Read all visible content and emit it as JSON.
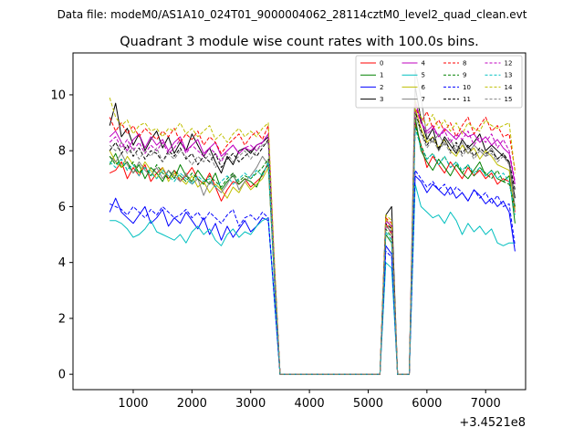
{
  "chart_data": {
    "type": "line",
    "suptitle": "Data file: modeM0/AS1A10_024T01_9000004062_28114cztM0_level2_quad_clean.evt",
    "title": "Quadrant 3 module wise count rates with 100.0s bins.",
    "xlabel": "",
    "ylabel": "",
    "x_offset_label": "+3.4521e8",
    "xlim": [
      -25,
      7680
    ],
    "ylim": [
      -0.55,
      11.5
    ],
    "xticks": [
      1000,
      2000,
      3000,
      4000,
      5000,
      6000,
      7000
    ],
    "xtick_labels": [
      "1000",
      "2000",
      "3000",
      "4000",
      "5000",
      "6000",
      "7000"
    ],
    "yticks": [
      0,
      2,
      4,
      6,
      8,
      10
    ],
    "ytick_labels": [
      "0",
      "2",
      "4",
      "6",
      "8",
      "10"
    ],
    "legend_location": "top-right",
    "legend_columns": 4,
    "x": [
      600,
      700,
      800,
      900,
      1000,
      1100,
      1200,
      1300,
      1400,
      1500,
      1600,
      1700,
      1800,
      1900,
      2000,
      2100,
      2200,
      2300,
      2400,
      2500,
      2600,
      2700,
      2800,
      2900,
      3000,
      3100,
      3200,
      3300,
      3400,
      3500,
      3600,
      3700,
      3800,
      3900,
      4000,
      4100,
      4200,
      4300,
      4400,
      4500,
      4600,
      4700,
      4800,
      4900,
      5000,
      5100,
      5200,
      5300,
      5400,
      5500,
      5600,
      5700,
      5800,
      5900,
      6000,
      6100,
      6200,
      6300,
      6400,
      6500,
      6600,
      6700,
      6800,
      6900,
      7000,
      7100,
      7200,
      7300,
      7400,
      7500
    ],
    "series": [
      {
        "name": "0",
        "color": "#ff0000",
        "dash": false,
        "values": [
          7.2,
          7.3,
          7.6,
          7.0,
          7.4,
          7.1,
          7.5,
          6.9,
          7.2,
          7.4,
          7.0,
          7.3,
          6.9,
          7.1,
          7.4,
          7.0,
          6.8,
          7.2,
          6.7,
          6.2,
          6.6,
          6.9,
          6.8,
          7.0,
          6.7,
          6.9,
          7.1,
          7.6,
          3.5,
          0.0,
          0,
          0,
          0,
          0,
          0,
          0,
          0,
          0,
          0,
          0,
          0,
          0,
          0,
          0,
          0,
          0,
          0.0,
          5.4,
          5.0,
          0.0,
          0,
          0.0,
          9.0,
          8.2,
          7.4,
          7.8,
          7.5,
          7.2,
          7.6,
          7.3,
          7.0,
          7.4,
          7.1,
          7.3,
          7.0,
          7.2,
          6.8,
          7.0,
          6.9,
          5.8
        ]
      },
      {
        "name": "1",
        "color": "#008000",
        "dash": false,
        "values": [
          7.5,
          7.9,
          7.4,
          7.6,
          7.2,
          7.5,
          7.0,
          7.4,
          7.2,
          6.9,
          7.3,
          7.0,
          7.5,
          7.1,
          6.9,
          7.3,
          7.0,
          6.8,
          7.2,
          6.6,
          6.9,
          7.1,
          6.8,
          7.0,
          6.9,
          6.7,
          7.2,
          7.5,
          3.6,
          0.0,
          0,
          0,
          0,
          0,
          0,
          0,
          0,
          0,
          0,
          0,
          0,
          0,
          0,
          0,
          0,
          0,
          0.0,
          5.0,
          4.7,
          0.0,
          0,
          0.0,
          9.2,
          8.0,
          7.6,
          7.3,
          7.7,
          7.4,
          7.1,
          7.5,
          7.2,
          7.0,
          7.3,
          7.6,
          7.1,
          7.3,
          7.0,
          6.9,
          7.1,
          5.4
        ]
      },
      {
        "name": "2",
        "color": "#0000ff",
        "dash": false,
        "values": [
          5.8,
          6.3,
          5.8,
          5.6,
          5.4,
          5.7,
          6.0,
          5.4,
          5.6,
          5.9,
          5.3,
          5.6,
          5.4,
          5.8,
          5.5,
          5.2,
          5.6,
          5.0,
          5.4,
          4.8,
          5.3,
          4.9,
          5.2,
          5.5,
          5.1,
          5.3,
          5.6,
          5.5,
          2.8,
          0.0,
          0,
          0,
          0,
          0,
          0,
          0,
          0,
          0,
          0,
          0,
          0,
          0,
          0,
          0,
          0,
          0,
          0.0,
          4.6,
          4.3,
          0.0,
          0,
          0.0,
          7.1,
          6.9,
          6.5,
          6.8,
          6.6,
          6.4,
          6.7,
          6.3,
          6.5,
          6.2,
          6.6,
          6.4,
          6.1,
          6.3,
          6.0,
          6.2,
          5.8,
          4.4
        ]
      },
      {
        "name": "3",
        "color": "#000000",
        "dash": false,
        "values": [
          8.9,
          9.7,
          8.5,
          8.8,
          8.2,
          8.6,
          8.0,
          8.4,
          8.7,
          8.1,
          8.5,
          7.9,
          8.3,
          8.0,
          8.6,
          8.2,
          7.8,
          8.1,
          7.6,
          7.2,
          7.8,
          7.5,
          8.0,
          8.1,
          7.9,
          8.2,
          8.3,
          8.5,
          4.0,
          0.0,
          0,
          0,
          0,
          0,
          0,
          0,
          0,
          0,
          0,
          0,
          0,
          0,
          0,
          0,
          0,
          0,
          0.0,
          5.7,
          6.0,
          0.0,
          0,
          0.0,
          10.3,
          9.1,
          8.4,
          8.8,
          8.0,
          8.5,
          8.2,
          7.9,
          8.4,
          8.1,
          8.3,
          8.6,
          8.0,
          8.2,
          8.0,
          7.8,
          7.6,
          6.3
        ]
      },
      {
        "name": "4",
        "color": "#bf00bf",
        "dash": false,
        "values": [
          8.5,
          8.7,
          8.3,
          8.0,
          8.4,
          8.6,
          8.1,
          8.5,
          8.2,
          8.4,
          8.0,
          8.3,
          8.5,
          8.0,
          8.2,
          8.4,
          7.9,
          8.1,
          8.3,
          7.8,
          8.0,
          8.2,
          7.9,
          8.1,
          8.0,
          8.2,
          8.3,
          8.6,
          3.9,
          0.0,
          0,
          0,
          0,
          0,
          0,
          0,
          0,
          0,
          0,
          0,
          0,
          0,
          0,
          0,
          0,
          0,
          0.0,
          5.5,
          5.3,
          0.0,
          0,
          0.0,
          9.8,
          9.0,
          8.7,
          8.9,
          8.5,
          8.8,
          8.6,
          8.4,
          8.7,
          8.5,
          8.6,
          8.3,
          8.5,
          8.2,
          8.4,
          8.1,
          7.9,
          6.8
        ]
      },
      {
        "name": "5",
        "color": "#00bfbf",
        "dash": false,
        "values": [
          5.5,
          5.5,
          5.4,
          5.2,
          4.9,
          5.0,
          5.2,
          5.5,
          5.1,
          5.0,
          4.9,
          4.8,
          5.0,
          4.7,
          5.1,
          5.3,
          5.0,
          5.2,
          4.8,
          4.6,
          5.0,
          5.2,
          4.9,
          5.1,
          5.0,
          5.3,
          5.5,
          5.6,
          2.7,
          0.0,
          0,
          0,
          0,
          0,
          0,
          0,
          0,
          0,
          0,
          0,
          0,
          0,
          0,
          0,
          0,
          0,
          0.0,
          4.0,
          3.8,
          0.0,
          0,
          0.0,
          6.8,
          6.0,
          5.8,
          5.6,
          5.7,
          5.4,
          5.8,
          5.5,
          5.0,
          5.4,
          5.1,
          5.3,
          5.0,
          5.2,
          4.7,
          4.6,
          4.7,
          4.7
        ]
      },
      {
        "name": "6",
        "color": "#bfbf00",
        "dash": false,
        "values": [
          8.0,
          7.6,
          7.4,
          7.8,
          7.5,
          7.2,
          7.6,
          7.3,
          7.0,
          7.4,
          6.9,
          7.2,
          7.0,
          6.8,
          7.1,
          6.7,
          6.9,
          6.5,
          6.8,
          6.6,
          6.3,
          6.7,
          6.5,
          6.9,
          6.6,
          6.8,
          7.0,
          7.4,
          3.6,
          0.0,
          0,
          0,
          0,
          0,
          0,
          0,
          0,
          0,
          0,
          0,
          0,
          0,
          0,
          0,
          0,
          0,
          0.0,
          5.6,
          5.2,
          0.0,
          0,
          0.0,
          9.5,
          8.8,
          8.3,
          8.5,
          8.1,
          8.4,
          8.0,
          7.8,
          8.2,
          7.9,
          8.1,
          7.7,
          8.0,
          7.8,
          7.5,
          7.4,
          7.3,
          5.9
        ]
      },
      {
        "name": "7",
        "color": "#808080",
        "dash": false,
        "values": [
          7.8,
          7.6,
          7.9,
          7.5,
          7.2,
          7.6,
          7.3,
          7.1,
          7.4,
          7.0,
          7.3,
          7.1,
          6.9,
          7.2,
          6.8,
          7.0,
          6.4,
          6.9,
          6.7,
          6.5,
          6.8,
          7.2,
          6.6,
          6.9,
          7.1,
          7.4,
          7.8,
          7.5,
          3.5,
          0.0,
          0,
          0,
          0,
          0,
          0,
          0,
          0,
          0,
          0,
          0,
          0,
          0,
          0,
          0,
          0,
          0,
          0.0,
          5.3,
          5.1,
          0.0,
          0,
          0.0,
          10.9,
          9.9,
          8.5,
          8.3,
          8.6,
          8.2,
          8.4,
          8.0,
          8.3,
          7.9,
          8.2,
          8.0,
          7.8,
          8.1,
          7.7,
          7.9,
          7.5,
          6.0
        ]
      },
      {
        "name": "8",
        "color": "#ff0000",
        "dash": true,
        "values": [
          9.2,
          8.7,
          9.0,
          8.6,
          8.9,
          8.5,
          8.8,
          8.6,
          8.4,
          8.7,
          8.5,
          8.8,
          8.3,
          8.6,
          8.4,
          8.7,
          8.2,
          8.5,
          8.3,
          7.9,
          8.2,
          8.4,
          8.6,
          8.2,
          8.5,
          8.7,
          8.4,
          8.9,
          4.1,
          0.0,
          0,
          0,
          0,
          0,
          0,
          0,
          0,
          0,
          0,
          0,
          0,
          0,
          0,
          0,
          0,
          0,
          0.0,
          5.6,
          5.4,
          0.0,
          0,
          0.0,
          9.6,
          9.0,
          9.4,
          8.8,
          9.1,
          8.7,
          9.0,
          8.5,
          8.9,
          9.2,
          8.6,
          8.9,
          9.2,
          8.7,
          8.9,
          8.5,
          8.6,
          7.3
        ]
      },
      {
        "name": "9",
        "color": "#008000",
        "dash": true,
        "values": [
          7.8,
          7.5,
          7.7,
          7.3,
          7.6,
          7.2,
          7.4,
          7.1,
          7.5,
          7.2,
          7.0,
          7.3,
          7.1,
          6.9,
          7.2,
          7.0,
          6.8,
          7.1,
          6.9,
          6.7,
          7.0,
          7.2,
          6.9,
          7.1,
          7.0,
          7.2,
          7.4,
          7.7,
          3.6,
          0.0,
          0,
          0,
          0,
          0,
          0,
          0,
          0,
          0,
          0,
          0,
          0,
          0,
          0,
          0,
          0,
          0,
          0.0,
          5.2,
          4.9,
          0.0,
          0,
          0.0,
          8.9,
          8.2,
          7.7,
          7.9,
          7.5,
          7.8,
          7.4,
          7.6,
          7.2,
          7.5,
          7.1,
          7.4,
          7.2,
          7.0,
          7.3,
          6.9,
          6.8,
          6.0
        ]
      },
      {
        "name": "10",
        "color": "#0000ff",
        "dash": true,
        "values": [
          6.1,
          6.0,
          5.9,
          5.7,
          6.0,
          5.8,
          5.6,
          5.9,
          5.7,
          6.0,
          5.8,
          5.6,
          5.7,
          5.9,
          5.6,
          5.8,
          5.5,
          5.8,
          5.6,
          5.4,
          5.7,
          5.9,
          5.3,
          5.6,
          5.7,
          5.5,
          5.8,
          5.6,
          2.8,
          0.0,
          0,
          0,
          0,
          0,
          0,
          0,
          0,
          0,
          0,
          0,
          0,
          0,
          0,
          0,
          0,
          0,
          0.0,
          4.4,
          4.2,
          0.0,
          0,
          0.0,
          7.3,
          7.0,
          6.7,
          6.9,
          6.6,
          6.8,
          6.4,
          6.7,
          6.5,
          6.2,
          6.6,
          6.3,
          6.5,
          6.1,
          6.4,
          6.0,
          6.1,
          4.6
        ]
      },
      {
        "name": "11",
        "color": "#000000",
        "dash": true,
        "values": [
          8.0,
          8.3,
          7.9,
          8.2,
          7.8,
          8.1,
          7.7,
          8.0,
          7.9,
          7.6,
          8.0,
          7.8,
          8.1,
          7.7,
          7.9,
          7.5,
          7.8,
          7.6,
          7.9,
          7.4,
          7.7,
          7.9,
          7.6,
          7.8,
          8.0,
          7.8,
          8.1,
          8.4,
          3.9,
          0.0,
          0,
          0,
          0,
          0,
          0,
          0,
          0,
          0,
          0,
          0,
          0,
          0,
          0,
          0,
          0,
          0,
          0.0,
          5.4,
          5.2,
          0.0,
          0,
          0.0,
          9.4,
          8.7,
          8.2,
          8.5,
          8.1,
          8.4,
          8.0,
          8.3,
          7.9,
          8.2,
          7.8,
          8.1,
          7.9,
          8.0,
          7.7,
          7.9,
          7.6,
          6.6
        ]
      },
      {
        "name": "12",
        "color": "#bf00bf",
        "dash": true,
        "values": [
          8.3,
          8.5,
          8.1,
          8.4,
          8.0,
          8.3,
          7.9,
          8.2,
          8.0,
          8.3,
          7.9,
          8.1,
          8.4,
          7.9,
          8.2,
          8.0,
          7.8,
          8.1,
          7.9,
          7.6,
          8.0,
          8.2,
          7.9,
          8.1,
          8.2,
          8.0,
          8.3,
          8.6,
          3.9,
          0.0,
          0,
          0,
          0,
          0,
          0,
          0,
          0,
          0,
          0,
          0,
          0,
          0,
          0,
          0,
          0,
          0,
          0.0,
          5.5,
          5.3,
          0.0,
          0,
          0.0,
          9.7,
          9.0,
          8.6,
          8.8,
          8.5,
          8.7,
          8.3,
          8.6,
          8.4,
          8.7,
          8.2,
          8.5,
          8.3,
          8.6,
          8.1,
          8.4,
          8.0,
          6.9
        ]
      },
      {
        "name": "13",
        "color": "#00bfbf",
        "dash": true,
        "values": [
          7.6,
          7.4,
          7.7,
          7.3,
          7.5,
          7.1,
          7.4,
          7.2,
          7.0,
          7.3,
          7.1,
          6.9,
          7.2,
          7.0,
          6.8,
          7.1,
          6.9,
          7.0,
          6.7,
          6.9,
          7.1,
          6.8,
          7.0,
          7.2,
          7.0,
          7.3,
          7.1,
          7.6,
          3.6,
          0.0,
          0,
          0,
          0,
          0,
          0,
          0,
          0,
          0,
          0,
          0,
          0,
          0,
          0,
          0,
          0,
          0,
          0.0,
          5.1,
          4.8,
          0.0,
          0,
          0.0,
          8.8,
          8.1,
          7.7,
          7.9,
          7.5,
          7.8,
          7.4,
          7.6,
          7.3,
          7.5,
          7.2,
          7.4,
          7.1,
          7.3,
          7.0,
          7.2,
          6.9,
          5.7
        ]
      },
      {
        "name": "14",
        "color": "#bfbf00",
        "dash": true,
        "values": [
          9.9,
          9.2,
          8.9,
          9.1,
          8.6,
          8.9,
          9.0,
          8.7,
          8.8,
          8.5,
          8.8,
          8.7,
          9.0,
          8.6,
          8.8,
          8.5,
          8.7,
          8.9,
          8.4,
          8.6,
          8.3,
          8.6,
          8.8,
          8.5,
          8.7,
          8.5,
          8.8,
          9.0,
          4.2,
          0.0,
          0,
          0,
          0,
          0,
          0,
          0,
          0,
          0,
          0,
          0,
          0,
          0,
          0,
          0,
          0,
          0,
          0.0,
          5.7,
          5.5,
          0.0,
          0,
          0.0,
          9.8,
          9.2,
          8.9,
          9.3,
          8.8,
          9.1,
          8.7,
          9.0,
          8.6,
          9.0,
          8.8,
          8.7,
          9.1,
          8.9,
          8.8,
          8.9,
          9.0,
          7.2
        ]
      },
      {
        "name": "15",
        "color": "#808080",
        "dash": true,
        "values": [
          8.2,
          8.0,
          8.3,
          7.9,
          8.1,
          7.7,
          8.0,
          7.8,
          8.1,
          7.6,
          7.9,
          7.7,
          8.0,
          7.8,
          7.5,
          7.8,
          7.6,
          7.9,
          7.4,
          7.7,
          7.9,
          7.6,
          7.8,
          8.0,
          7.7,
          8.0,
          8.2,
          8.3,
          3.8,
          0.0,
          0,
          0,
          0,
          0,
          0,
          0,
          0,
          0,
          0,
          0,
          0,
          0,
          0,
          0,
          0,
          0,
          0.0,
          5.3,
          5.1,
          0.0,
          0,
          0.0,
          9.3,
          8.6,
          8.1,
          8.4,
          8.0,
          8.3,
          7.9,
          8.2,
          7.8,
          8.1,
          7.7,
          8.0,
          7.8,
          7.9,
          7.6,
          7.8,
          7.5,
          6.4
        ]
      }
    ]
  }
}
